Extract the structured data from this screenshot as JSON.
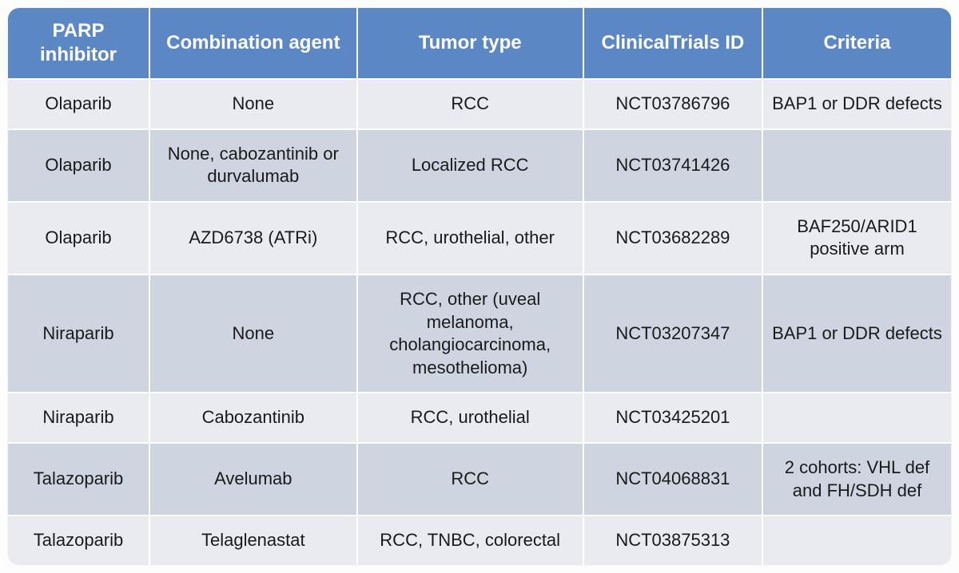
{
  "table": {
    "type": "table",
    "header_bg": "#5b87c4",
    "header_text_color": "#ffffff",
    "row_even_bg": "#e9ebf1",
    "row_odd_bg": "#cfd4e1",
    "cell_text_color": "#1a1a1a",
    "border_color": "#ffffff",
    "header_fontsize": 24,
    "cell_fontsize": 22,
    "col_widths_pct": [
      15,
      22,
      24,
      19,
      20
    ],
    "columns": [
      "PARP inhibitor",
      "Combination agent",
      "Tumor type",
      "ClinicalTrials ID",
      "Criteria"
    ],
    "rows": [
      [
        "Olaparib",
        "None",
        "RCC",
        "NCT03786796",
        "BAP1 or DDR defects"
      ],
      [
        "Olaparib",
        "None, cabozantinib or durvalumab",
        "Localized RCC",
        "NCT03741426",
        ""
      ],
      [
        "Olaparib",
        "AZD6738 (ATRi)",
        "RCC, urothelial, other",
        "NCT03682289",
        "BAF250/ARID1 positive arm"
      ],
      [
        "Niraparib",
        "None",
        "RCC, other (uveal melanoma, cholangiocarcinoma, mesothelioma)",
        "NCT03207347",
        "BAP1 or DDR defects"
      ],
      [
        "Niraparib",
        "Cabozantinib",
        "RCC, urothelial",
        "NCT03425201",
        ""
      ],
      [
        "Talazoparib",
        "Avelumab",
        "RCC",
        "NCT04068831",
        "2 cohorts: VHL def and FH/SDH def"
      ],
      [
        "Talazoparib",
        "Telaglenastat",
        "RCC, TNBC, colorectal",
        "NCT03875313",
        ""
      ]
    ]
  }
}
